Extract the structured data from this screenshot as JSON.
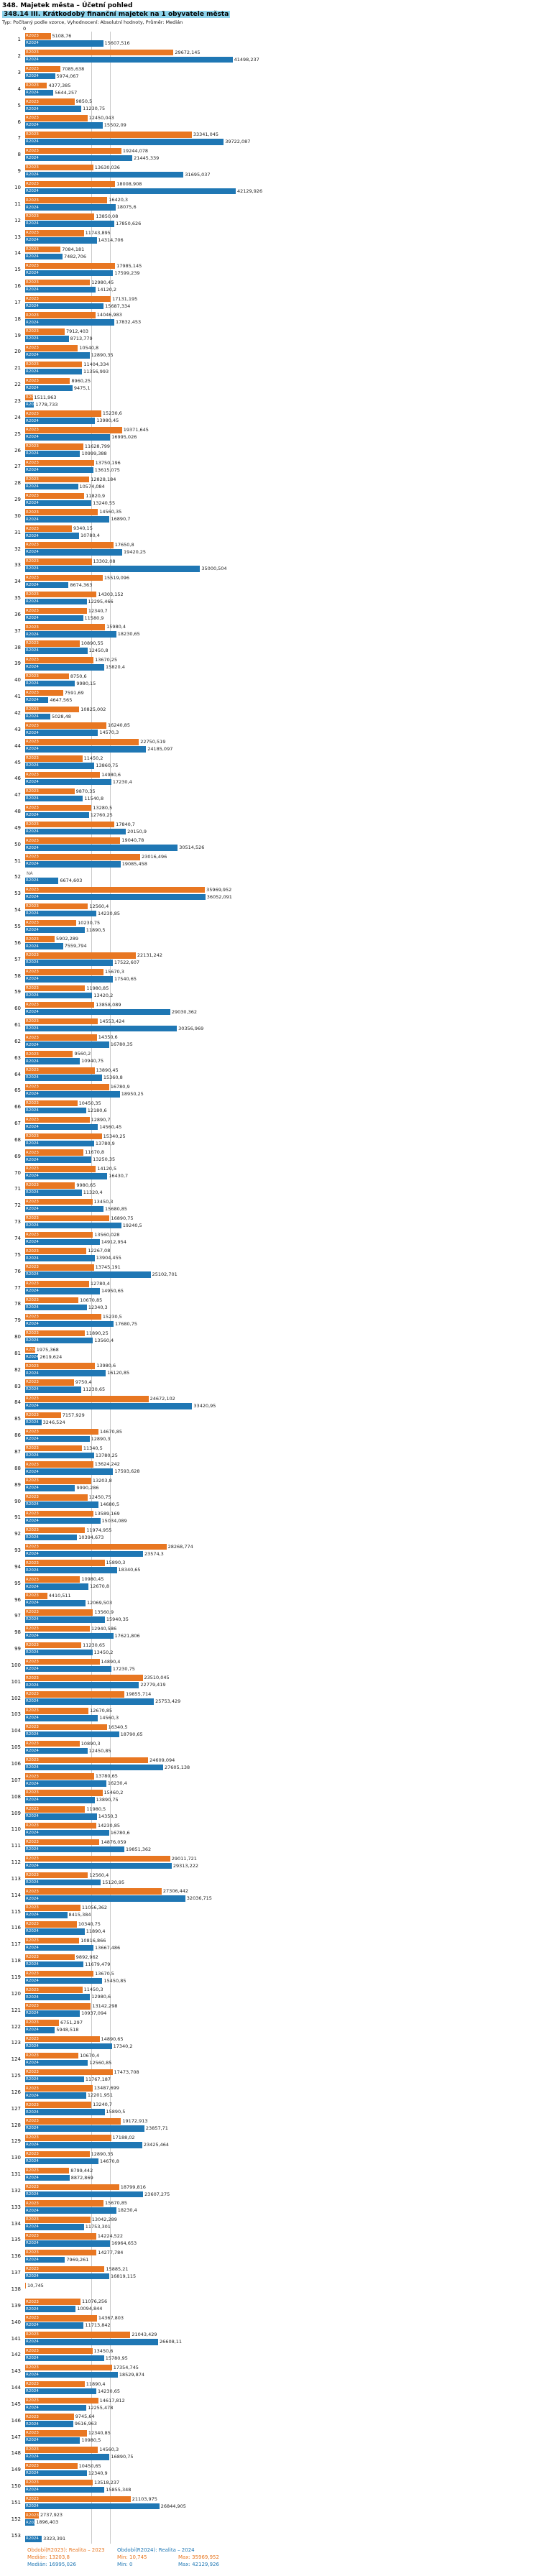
{
  "header": {
    "title": "348. Majetek města – Účetní pohled",
    "subtitle": "348.14 III. Krátkodobý finanční majetek na 1 obyvatele města",
    "meta": "Typ: Počítaný podle vzorce, Vyhodnocení: Absolutní hodnoty, Průměr: Medián"
  },
  "axis": {
    "zero_label": "0"
  },
  "colors": {
    "subtitle_highlight": "#8fd4ec",
    "median_line": "#c9c9c9"
  },
  "series": {
    "r2023": {
      "label": "R2023",
      "color": "#e87722",
      "legend": "Období(R2023): Realita – 2023",
      "median": "13203,8",
      "min": "10,745",
      "max": "35969,952",
      "median_value": 13203.8
    },
    "r2024": {
      "label": "R2024",
      "color": "#1f77b4",
      "legend": "Období(R2024): Realita – 2024",
      "median": "16995,026",
      "min": "0",
      "max": "42129,926",
      "median_value": 16995.026
    }
  },
  "footer": {
    "median_label": "Medián:",
    "min_label": "Min:",
    "max_label": "Max:"
  },
  "chart_data": {
    "type": "bar",
    "orientation": "horizontal",
    "title": "348.14 III. Krátkodobý finanční majetek na 1 obyvatele města",
    "x_max": 42129.926,
    "xlim": [
      0,
      42129.926
    ],
    "legend_position": "bottom",
    "rows": [
      {
        "n": "1",
        "r2023": "5108,76",
        "r2024": "15607,516"
      },
      {
        "n": "2",
        "r2023": "29672,145",
        "r2024": "41498,237"
      },
      {
        "n": "3",
        "r2023": "7085,638",
        "r2024": "5974,067"
      },
      {
        "n": "4",
        "r2023": "4377,385",
        "r2024": "5644,257"
      },
      {
        "n": "5",
        "r2023": "9850,5",
        "r2024": "11230,75"
      },
      {
        "n": "6",
        "r2023": "12450,043",
        "r2024": "15502,09"
      },
      {
        "n": "7",
        "r2023": "33341,045",
        "r2024": "39722,087"
      },
      {
        "n": "8",
        "r2023": "19244,078",
        "r2024": "21445,339"
      },
      {
        "n": "9",
        "r2023": "13630,036",
        "r2024": "31695,037"
      },
      {
        "n": "10",
        "r2023": "18008,908",
        "r2024": "42129,926"
      },
      {
        "n": "11",
        "r2023": "16420,3",
        "r2024": "18075,6"
      },
      {
        "n": "12",
        "r2023": "13850,08",
        "r2024": "17850,626"
      },
      {
        "n": "13",
        "r2023": "11743,895",
        "r2024": "14314,706"
      },
      {
        "n": "14",
        "r2023": "7084,181",
        "r2024": "7482,706"
      },
      {
        "n": "15",
        "r2023": "17985,145",
        "r2024": "17599,239"
      },
      {
        "n": "16",
        "r2023": "12980,45",
        "r2024": "14120,2"
      },
      {
        "n": "17",
        "r2023": "17131,195",
        "r2024": "15687,334"
      },
      {
        "n": "18",
        "r2023": "14046,983",
        "r2024": "17832,453"
      },
      {
        "n": "19",
        "r2023": "7912,403",
        "r2024": "8713,779"
      },
      {
        "n": "20",
        "r2023": "10540,8",
        "r2024": "12890,35"
      },
      {
        "n": "21",
        "r2023": "11404,334",
        "r2024": "11356,993"
      },
      {
        "n": "22",
        "r2023": "8960,25",
        "r2024": "9475,1"
      },
      {
        "n": "23",
        "r2023": "1511,963",
        "r2024": "1778,733"
      },
      {
        "n": "24",
        "r2023": "15230,6",
        "r2024": "13980,45"
      },
      {
        "n": "25",
        "r2023": "19371,645",
        "r2024": "16995,026"
      },
      {
        "n": "26",
        "r2023": "11628,799",
        "r2024": "10999,388"
      },
      {
        "n": "27",
        "r2023": "13750,196",
        "r2024": "13615,075"
      },
      {
        "n": "28",
        "r2023": "12828,184",
        "r2024": "10574,084"
      },
      {
        "n": "29",
        "r2023": "11820,9",
        "r2024": "13240,55"
      },
      {
        "n": "30",
        "r2023": "14560,35",
        "r2024": "16890,7"
      },
      {
        "n": "31",
        "r2023": "9340,15",
        "r2024": "10780,4"
      },
      {
        "n": "32",
        "r2023": "17650,8",
        "r2024": "19420,25"
      },
      {
        "n": "33",
        "r2023": "13302,08",
        "r2024": "35000,504"
      },
      {
        "n": "34",
        "r2023": "15519,096",
        "r2024": "8674,363"
      },
      {
        "n": "35",
        "r2023": "14303,152",
        "r2024": "12295,466"
      },
      {
        "n": "36",
        "r2023": "12340,7",
        "r2024": "11580,9"
      },
      {
        "n": "37",
        "r2023": "15980,4",
        "r2024": "18230,65"
      },
      {
        "n": "38",
        "r2023": "10890,55",
        "r2024": "12450,8"
      },
      {
        "n": "39",
        "r2023": "13670,25",
        "r2024": "15820,4"
      },
      {
        "n": "40",
        "r2023": "8750,6",
        "r2024": "9980,15"
      },
      {
        "n": "41",
        "r2023": "7591,69",
        "r2024": "4647,565"
      },
      {
        "n": "42",
        "r2023": "10825,002",
        "r2024": "5028,48"
      },
      {
        "n": "43",
        "r2023": "16240,85",
        "r2024": "14570,3"
      },
      {
        "n": "44",
        "r2023": "22750,519",
        "r2024": "24185,097"
      },
      {
        "n": "45",
        "r2023": "11450,2",
        "r2024": "13860,75"
      },
      {
        "n": "46",
        "r2023": "14980,6",
        "r2024": "17230,4"
      },
      {
        "n": "47",
        "r2023": "9870,35",
        "r2024": "11540,8"
      },
      {
        "n": "48",
        "r2023": "13280,5",
        "r2024": "12760,25"
      },
      {
        "n": "49",
        "r2023": "17840,7",
        "r2024": "20150,9"
      },
      {
        "n": "50",
        "r2023": "19040,78",
        "r2024": "30514,526"
      },
      {
        "n": "51",
        "r2023": "23016,496",
        "r2024": "19085,458"
      },
      {
        "n": "52",
        "r2023": "NA",
        "r2024": "6674,603"
      },
      {
        "n": "53",
        "r2023": "35969,952",
        "r2024": "36052,091"
      },
      {
        "n": "54",
        "r2023": "12560,4",
        "r2024": "14230,85"
      },
      {
        "n": "55",
        "r2023": "10230,75",
        "r2024": "11890,5"
      },
      {
        "n": "56",
        "r2023": "5902,289",
        "r2024": "7559,794"
      },
      {
        "n": "57",
        "r2023": "22131,242",
        "r2024": "17522,607"
      },
      {
        "n": "58",
        "r2023": "15670,3",
        "r2024": "17540,65"
      },
      {
        "n": "59",
        "r2023": "11980,85",
        "r2024": "13420,2"
      },
      {
        "n": "60",
        "r2023": "13858,089",
        "r2024": "29030,362"
      },
      {
        "n": "61",
        "r2023": "14553,424",
        "r2024": "30356,969"
      },
      {
        "n": "62",
        "r2023": "14350,6",
        "r2024": "16780,35"
      },
      {
        "n": "63",
        "r2023": "9560,2",
        "r2024": "10940,75"
      },
      {
        "n": "64",
        "r2023": "13890,45",
        "r2024": "15360,8"
      },
      {
        "n": "65",
        "r2023": "16780,9",
        "r2024": "18950,25"
      },
      {
        "n": "66",
        "r2023": "10450,35",
        "r2024": "12180,6"
      },
      {
        "n": "67",
        "r2023": "12890,7",
        "r2024": "14560,45"
      },
      {
        "n": "68",
        "r2023": "15340,25",
        "r2024": "13780,9"
      },
      {
        "n": "69",
        "r2023": "11670,8",
        "r2024": "13250,35"
      },
      {
        "n": "70",
        "r2023": "14120,5",
        "r2024": "16430,7"
      },
      {
        "n": "71",
        "r2023": "9980,65",
        "r2024": "11320,4"
      },
      {
        "n": "72",
        "r2023": "13450,3",
        "r2024": "15680,85"
      },
      {
        "n": "73",
        "r2023": "16890,75",
        "r2024": "19240,5"
      },
      {
        "n": "74",
        "r2023": "13560,028",
        "r2024": "14912,954"
      },
      {
        "n": "75",
        "r2023": "12267,08",
        "r2024": "13904,455"
      },
      {
        "n": "76",
        "r2023": "13745,191",
        "r2024": "25102,701"
      },
      {
        "n": "77",
        "r2023": "12780,4",
        "r2024": "14950,65"
      },
      {
        "n": "78",
        "r2023": "10670,85",
        "r2024": "12340,3"
      },
      {
        "n": "79",
        "r2023": "15230,5",
        "r2024": "17680,75"
      },
      {
        "n": "80",
        "r2023": "11890,25",
        "r2024": "13560,4"
      },
      {
        "n": "81",
        "r2023": "1975,368",
        "r2024": "2619,624"
      },
      {
        "n": "82",
        "r2023": "13980,6",
        "r2024": "16120,85"
      },
      {
        "n": "83",
        "r2023": "9750,4",
        "r2024": "11230,65"
      },
      {
        "n": "84",
        "r2023": "24672,102",
        "r2024": "33420,95"
      },
      {
        "n": "85",
        "r2023": "7157,929",
        "r2024": "3246,524"
      },
      {
        "n": "86",
        "r2023": "14670,85",
        "r2024": "12890,3"
      },
      {
        "n": "87",
        "r2023": "11340,5",
        "r2024": "13780,25"
      },
      {
        "n": "88",
        "r2023": "13624,242",
        "r2024": "17593,628"
      },
      {
        "n": "89",
        "r2023": "13203,8",
        "r2024": "9990,286"
      },
      {
        "n": "90",
        "r2023": "12450,75",
        "r2024": "14680,5"
      },
      {
        "n": "91",
        "r2023": "13589,169",
        "r2024": "15034,089"
      },
      {
        "n": "92",
        "r2023": "11974,955",
        "r2024": "10394,673"
      },
      {
        "n": "93",
        "r2023": "28268,774",
        "r2024": "23574,3"
      },
      {
        "n": "94",
        "r2023": "15890,3",
        "r2024": "18340,65"
      },
      {
        "n": "95",
        "r2023": "10980,45",
        "r2024": "12670,8"
      },
      {
        "n": "96",
        "r2023": "4410,511",
        "r2024": "12069,503"
      },
      {
        "n": "97",
        "r2023": "13560,9",
        "r2024": "15940,35"
      },
      {
        "n": "98",
        "r2023": "12940,586",
        "r2024": "17621,806"
      },
      {
        "n": "99",
        "r2023": "11230,65",
        "r2024": "13450,2"
      },
      {
        "n": "100",
        "r2023": "14890,4",
        "r2024": "17230,75"
      },
      {
        "n": "101",
        "r2023": "23510,045",
        "r2024": "22779,419"
      },
      {
        "n": "102",
        "r2023": "19855,714",
        "r2024": "25753,429"
      },
      {
        "n": "103",
        "r2023": "12670,85",
        "r2024": "14560,3"
      },
      {
        "n": "104",
        "r2023": "16340,5",
        "r2024": "18790,65"
      },
      {
        "n": "105",
        "r2023": "10890,3",
        "r2024": "12450,85"
      },
      {
        "n": "106",
        "r2023": "24609,094",
        "r2024": "27605,138"
      },
      {
        "n": "107",
        "r2023": "13780,65",
        "r2024": "16230,4"
      },
      {
        "n": "108",
        "r2023": "15460,2",
        "r2024": "13890,75"
      },
      {
        "n": "109",
        "r2023": "11980,5",
        "r2024": "14350,3"
      },
      {
        "n": "110",
        "r2023": "14230,85",
        "r2024": "16780,6"
      },
      {
        "n": "111",
        "r2023": "14876,059",
        "r2024": "19851,362"
      },
      {
        "n": "112",
        "r2023": "29011,721",
        "r2024": "29313,222"
      },
      {
        "n": "113",
        "r2023": "12560,4",
        "r2024": "15120,95"
      },
      {
        "n": "114",
        "r2023": "27306,442",
        "r2024": "32036,715"
      },
      {
        "n": "115",
        "r2023": "11056,362",
        "r2024": "8415,384"
      },
      {
        "n": "116",
        "r2023": "10340,75",
        "r2024": "11890,4"
      },
      {
        "n": "117",
        "r2023": "10816,866",
        "r2024": "13667,486"
      },
      {
        "n": "118",
        "r2023": "9892,962",
        "r2024": "11679,479"
      },
      {
        "n": "119",
        "r2023": "13670,5",
        "r2024": "15450,85"
      },
      {
        "n": "120",
        "r2023": "11450,3",
        "r2024": "12980,6"
      },
      {
        "n": "121",
        "r2023": "13142,298",
        "r2024": "10937,094"
      },
      {
        "n": "122",
        "r2023": "6751,297",
        "r2024": "5948,518"
      },
      {
        "n": "123",
        "r2023": "14890,65",
        "r2024": "17340,2"
      },
      {
        "n": "124",
        "r2023": "10670,4",
        "r2024": "12560,85"
      },
      {
        "n": "125",
        "r2023": "17473,708",
        "r2024": "11767,187"
      },
      {
        "n": "126",
        "r2023": "13487,699",
        "r2024": "12201,951"
      },
      {
        "n": "127",
        "r2023": "13240,7",
        "r2024": "15890,5"
      },
      {
        "n": "128",
        "r2023": "19172,913",
        "r2024": "23857,71"
      },
      {
        "n": "129",
        "r2023": "17188,02",
        "r2024": "23425,464"
      },
      {
        "n": "130",
        "r2023": "12890,35",
        "r2024": "14670,8"
      },
      {
        "n": "131",
        "r2023": "8799,442",
        "r2024": "8872,869"
      },
      {
        "n": "132",
        "r2023": "18799,816",
        "r2024": "23607,275"
      },
      {
        "n": "133",
        "r2023": "15670,85",
        "r2024": "18230,4"
      },
      {
        "n": "134",
        "r2023": "13042,289",
        "r2024": "11753,301"
      },
      {
        "n": "135",
        "r2023": "14224,522",
        "r2024": "16964,653"
      },
      {
        "n": "136",
        "r2023": "14277,784",
        "r2024": "7969,261"
      },
      {
        "n": "137",
        "r2023": "15885,21",
        "r2024": "16819,115"
      },
      {
        "n": "138",
        "r2023": "10,745",
        "r2024": null
      },
      {
        "n": "139",
        "r2023": "11076,256",
        "r2024": "10094,844"
      },
      {
        "n": "140",
        "r2023": "14367,803",
        "r2024": "11713,842"
      },
      {
        "n": "141",
        "r2023": "21043,429",
        "r2024": "26608,11"
      },
      {
        "n": "142",
        "r2023": "13450,6",
        "r2024": "15780,95"
      },
      {
        "n": "143",
        "r2023": "17354,745",
        "r2024": "18529,874"
      },
      {
        "n": "144",
        "r2023": "11890,4",
        "r2024": "14230,65"
      },
      {
        "n": "145",
        "r2023": "14617,812",
        "r2024": "12255,478"
      },
      {
        "n": "146",
        "r2023": "9745,64",
        "r2024": "9616,963"
      },
      {
        "n": "147",
        "r2023": "12340,85",
        "r2024": "10980,5"
      },
      {
        "n": "148",
        "r2023": "14560,3",
        "r2024": "16890,75"
      },
      {
        "n": "149",
        "r2023": "10450,65",
        "r2024": "12340,9"
      },
      {
        "n": "150",
        "r2023": "13518,237",
        "r2024": "15855,348"
      },
      {
        "n": "151",
        "r2023": "21103,975",
        "r2024": "26844,905"
      },
      {
        "n": "152",
        "r2023": "2737,923",
        "r2024": "1896,403"
      },
      {
        "n": "153",
        "r2023": null,
        "r2024": "3323,391"
      }
    ]
  }
}
